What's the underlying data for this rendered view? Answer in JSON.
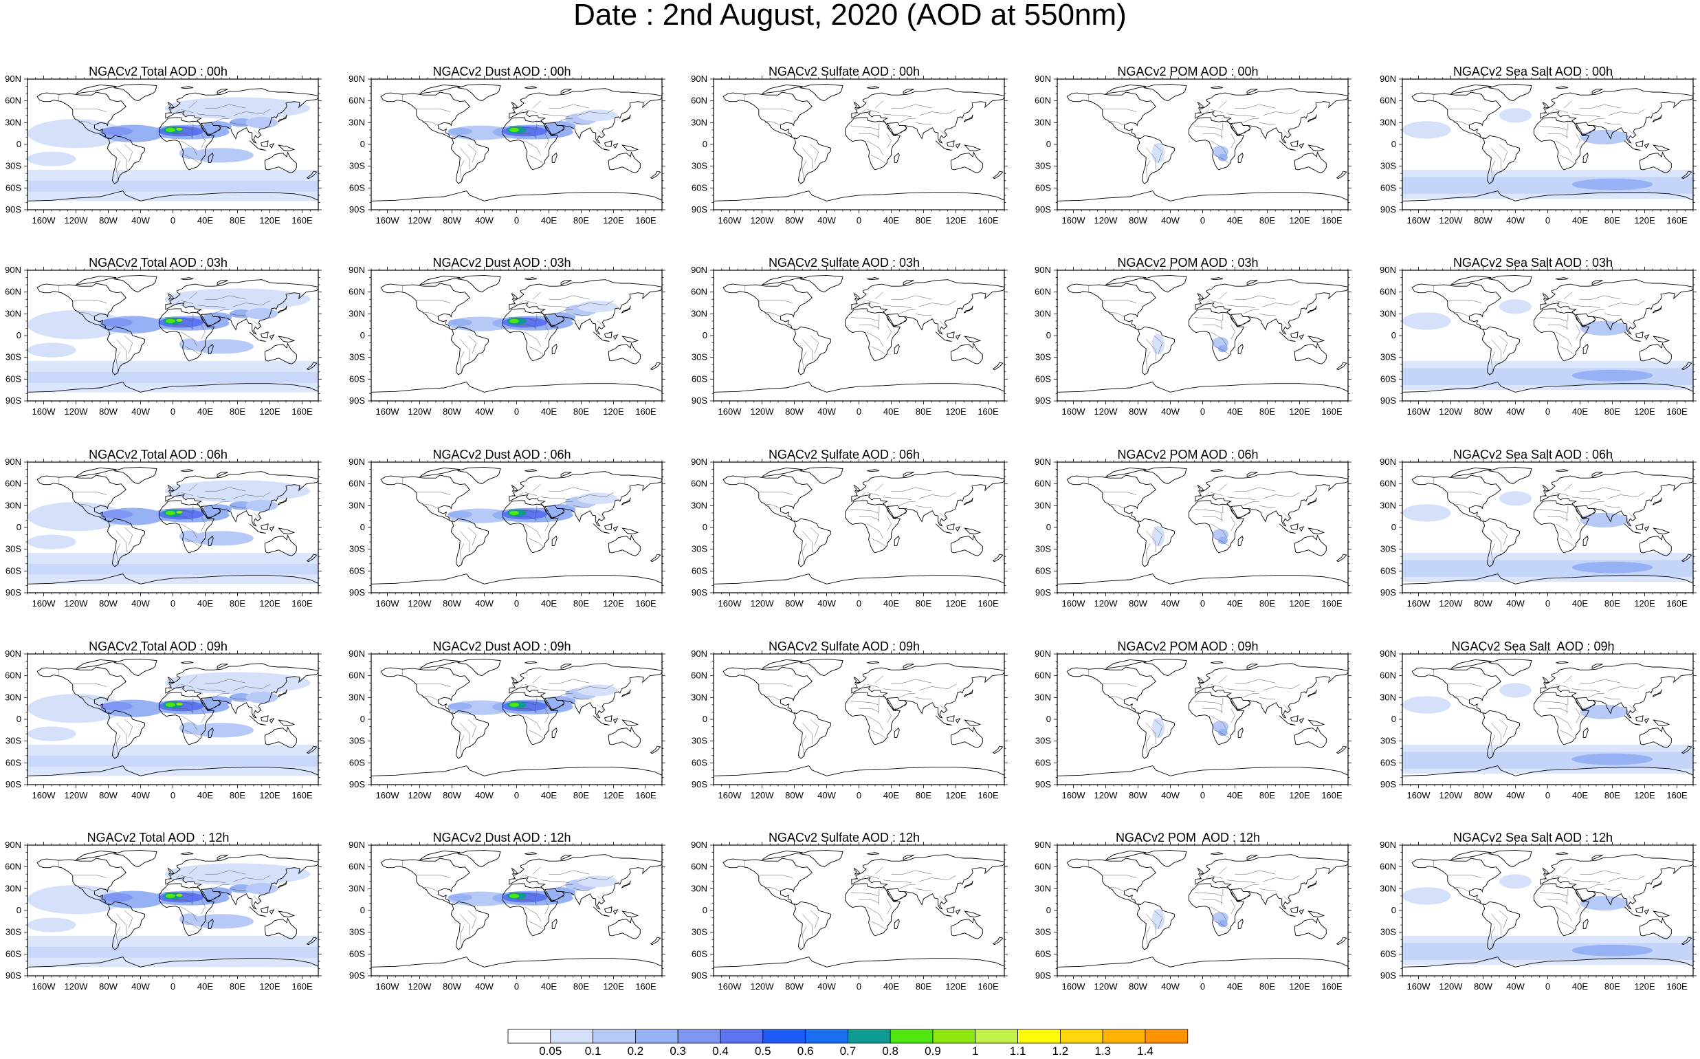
{
  "title": "Date : 2nd August, 2020 (AOD at 550nm)",
  "lat_labels": [
    "90N",
    "60N",
    "30N",
    "0",
    "30S",
    "60S",
    "90S"
  ],
  "lon_labels": [
    "160W",
    "120W",
    "80W",
    "40W",
    "0",
    "40E",
    "80E",
    "120E",
    "160E"
  ],
  "species": [
    "Total",
    "Dust",
    "Sulfate",
    "POM",
    "Sea Salt"
  ],
  "hours": [
    "00h",
    "03h",
    "06h",
    "09h",
    "12h"
  ],
  "panels": [
    [
      {
        "title": "NGACv2 Total AOD : 00h",
        "species": "Total",
        "hour": "00h"
      },
      {
        "title": "NGACv2 Dust AOD : 00h",
        "species": "Dust",
        "hour": "00h"
      },
      {
        "title": "NGACv2 Sulfate AOD : 00h",
        "species": "Sulfate",
        "hour": "00h"
      },
      {
        "title": "NGACv2 POM AOD : 00h",
        "species": "POM",
        "hour": "00h"
      },
      {
        "title": "NGACv2 Sea Salt AOD : 00h",
        "species": "Sea Salt",
        "hour": "00h"
      }
    ],
    [
      {
        "title": "NGACv2 Total AOD : 03h",
        "species": "Total",
        "hour": "03h"
      },
      {
        "title": "NGACv2 Dust AOD : 03h",
        "species": "Dust",
        "hour": "03h"
      },
      {
        "title": "NGACv2 Sulfate AOD : 03h",
        "species": "Sulfate",
        "hour": "03h"
      },
      {
        "title": "NGACv2 POM AOD : 03h",
        "species": "POM",
        "hour": "03h"
      },
      {
        "title": "NGACv2 Sea Salt AOD : 03h",
        "species": "Sea Salt",
        "hour": "03h"
      }
    ],
    [
      {
        "title": "NGACv2 Total AOD : 06h",
        "species": "Total",
        "hour": "06h"
      },
      {
        "title": "NGACv2 Dust AOD : 06h",
        "species": "Dust",
        "hour": "06h"
      },
      {
        "title": "NGACv2 Sulfate AOD : 06h",
        "species": "Sulfate",
        "hour": "06h"
      },
      {
        "title": "NGACv2 POM AOD : 06h",
        "species": "POM",
        "hour": "06h"
      },
      {
        "title": "NGACv2 Sea Salt AOD : 06h",
        "species": "Sea Salt",
        "hour": "06h"
      }
    ],
    [
      {
        "title": "NGACv2 Total AOD : 09h",
        "species": "Total",
        "hour": "09h"
      },
      {
        "title": "NGACv2 Dust AOD : 09h",
        "species": "Dust",
        "hour": "09h"
      },
      {
        "title": "NGACv2 Sulfate AOD : 09h",
        "species": "Sulfate",
        "hour": "09h"
      },
      {
        "title": "NGACv2 POM AOD : 09h",
        "species": "POM",
        "hour": "09h"
      },
      {
        "title": "NGACv2 Sea Salt  AOD : 09h",
        "species": "Sea Salt",
        "hour": "09h"
      }
    ],
    [
      {
        "title": "NGACv2 Total AOD  : 12h",
        "species": "Total",
        "hour": "12h"
      },
      {
        "title": "NGACv2 Dust AOD : 12h",
        "species": "Dust",
        "hour": "12h"
      },
      {
        "title": "NGACv2 Sulfate AOD : 12h",
        "species": "Sulfate",
        "hour": "12h"
      },
      {
        "title": "NGACv2 POM  AOD : 12h",
        "species": "POM",
        "hour": "12h"
      },
      {
        "title": "NGACv2 Sea Salt AOD : 12h",
        "species": "Sea Salt",
        "hour": "12h"
      }
    ]
  ],
  "colorbar": {
    "labels": [
      "0.05",
      "0.1",
      "0.2",
      "0.3",
      "0.4",
      "0.5",
      "0.6",
      "0.7",
      "0.8",
      "0.9",
      "1",
      "1.1",
      "1.2",
      "1.3",
      "1.4"
    ],
    "colors": [
      "#ffffff",
      "#d5e1fb",
      "#b6c9f7",
      "#97b1f5",
      "#7f97f3",
      "#5c74ef",
      "#1e5af5",
      "#1a6ff0",
      "#0e9b93",
      "#4ee70f",
      "#8ee80f",
      "#c2f14a",
      "#fffb0a",
      "#ffd60a",
      "#ffb200",
      "#ff9400",
      "#ff7300",
      "#ff2200"
    ]
  },
  "colors": {
    "coast": "#000000",
    "borders": "#555555",
    "aod_0_1": "#d5e1fb",
    "aod_0_2": "#b6c9f7",
    "aod_0_3": "#97b1f5",
    "aod_0_4": "#7f97f3",
    "aod_0_5": "#5c74ef",
    "aod_0_7": "#0e9b93",
    "aod_0_8": "#4ee70f",
    "aod_0_9": "#8ee80f"
  }
}
